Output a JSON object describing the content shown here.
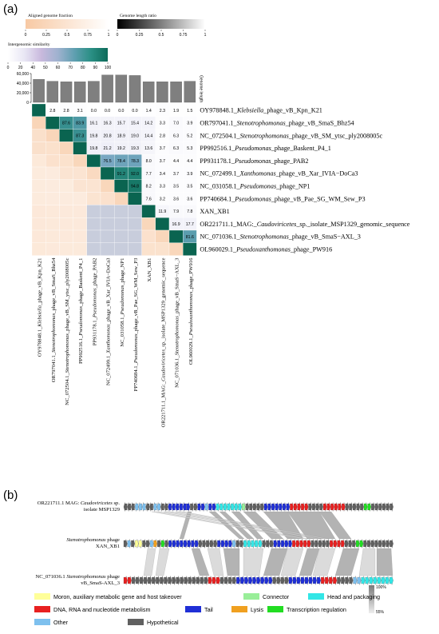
{
  "panel_a": {
    "label": "(a)",
    "colorbars": {
      "fraction": {
        "title": "Aligned genome fraction",
        "ticks": [
          "0",
          "0.25",
          "0.5",
          "0.75",
          "1"
        ],
        "stops": [
          "#f7c9a4",
          "#ffffff"
        ]
      },
      "length_ratio": {
        "title": "Genome length ratio",
        "ticks": [
          "0",
          "0.25",
          "0.5",
          "0.75",
          "1"
        ],
        "stops": [
          "#000000",
          "#ffffff"
        ]
      },
      "similarity": {
        "title": "Intergenomic similarity",
        "ticks": [
          "0",
          "20",
          "40",
          "50",
          "60",
          "70",
          "80",
          "90",
          "100"
        ],
        "stops": [
          "#ffffff",
          "#e8e6f4",
          "#c9b9dd",
          "#9fb2cf",
          "#5f9fb0",
          "#2a8f84",
          "#0d6b5a"
        ]
      }
    },
    "bar_axis": {
      "ticks": [
        "0",
        "20,000",
        "40,000",
        "60,000"
      ],
      "label": "Genome length"
    }
  },
  "chart_data": [
    {
      "type": "heatmap",
      "title": "",
      "row_labels": [
        "OY978848.1_Klebsiella_phage_vB_Kpn_K21",
        "OR797041.1_Stenotrophomonas_phage_vB_SmaS_Bhz54",
        "NC_072504.1_Stenotrophomonas_phage_vB_SM_ytsc_ply2008005c",
        "PP992516.1_Pseudomonas_phage_Baskent_P4_1",
        "PP931178.1_Pseudomonas_phage_PAB2",
        "NC_072499.1_Xanthomonas_phage_vB_Xar_IVIA-DoCa3",
        "NC_031058.1_Pseudomonas_phage_NP1",
        "PP740684.1_Pseudomonas_phage_vB_Pae_SG_WM_Sew_P3",
        "XAN_XB1",
        "OR221711.1_MAG:_Caudoviricetes_sp._isolate_MSP1329_genomic_sequence",
        "NC_071036.1_Stenotrophomonas_phage_vB_SmaS-AXL_3",
        "OL960029.1_Pseudoxanthomonas_phage_PW916"
      ],
      "row_parts": [
        [
          "OY978848.1_",
          "Klebsiella",
          "_phage_vB_Kpn_K21"
        ],
        [
          "OR797041.1_",
          "Stenotrophomonas",
          "_phage_vB_SmaS_Bhz54"
        ],
        [
          "NC_072504.1_",
          "Stenotrophomonas",
          "_phage_vB_SM_ytsc_ply2008005c"
        ],
        [
          "PP992516.1_",
          "Pseudomonas",
          "_phage_Baskent_P4_1"
        ],
        [
          "PP931178.1_",
          "Pseudomonas",
          "_phage_PAB2"
        ],
        [
          "NC_072499.1_",
          "Xanthomonas",
          "_phage_vB_Xar_IVIA−DoCa3"
        ],
        [
          "NC_031058.1_",
          "Pseudomonas",
          "_phage_NP1"
        ],
        [
          "PP740684.1_",
          "Pseudomonas",
          "_phage_vB_Pae_SG_WM_Sew_P3"
        ],
        [
          "XAN_XB1",
          "",
          ""
        ],
        [
          "OR221711.1_MAG:_",
          "Caudoviricetes",
          "_sp._isolate_MSP1329_genomic_sequence"
        ],
        [
          "NC_071036.1_",
          "Stenotrophomonas",
          "_phage_vB_SmaS−AXL_3"
        ],
        [
          "OL960029.1_",
          "Pseudoxanthomonas",
          "_phage_PW916"
        ]
      ],
      "col_parts": [
        [
          "OY978848.1_",
          "Klebsiella",
          "_phage_vB_Kpn_K21"
        ],
        [
          "OR797041.1_",
          "Stenotrophomonas",
          "_phage_vB_SmaS_Bhz54"
        ],
        [
          "NC_072504.1_",
          "Stenotrophomonas",
          "_phage_vB_SM_ytsc_ply2008005c"
        ],
        [
          "PP992516.1_",
          "Pseudomonas",
          "_phage_Baskent_P4_1"
        ],
        [
          "PP931178.1_",
          "Pseudomonas",
          "_phage_PAB2"
        ],
        [
          "NC_072499.1_",
          "Xanthomonas",
          "_phage_vB_Xar_IVIA−DoCa3"
        ],
        [
          "NC_031058.1_",
          "Pseudomonas",
          "_phage_NP1"
        ],
        [
          "PP740684.1_",
          "Pseudomonas",
          "_phage_vB_Pae_SG_WM_Sew_P3"
        ],
        [
          "XAN_XB1",
          "",
          ""
        ],
        [
          "OR221711.1_MAG:_",
          "Caudoviricetes",
          "_sp._isolate_MSP1329_genomic_sequence"
        ],
        [
          "NC_071036.1_",
          "Stenotrophomonas",
          "_phage_vB_SmaS−AXL_3"
        ],
        [
          "OL960029.1_",
          "Pseudoxanthomonas",
          "_phage_PW916"
        ]
      ],
      "upper_triangle": [
        [
          100,
          2.8,
          2.8,
          3.1,
          0.0,
          0.0,
          0.0,
          0.0,
          1.4,
          2.3,
          1.9,
          1.5
        ],
        [
          null,
          100,
          87.6,
          83.9,
          16.1,
          16.3,
          15.7,
          15.4,
          14.2,
          3.3,
          7.0,
          3.9
        ],
        [
          null,
          null,
          100,
          87.3,
          19.8,
          20.8,
          18.9,
          19.0,
          14.4,
          2.8,
          6.3,
          5.2
        ],
        [
          null,
          null,
          null,
          100,
          19.8,
          21.2,
          19.2,
          19.3,
          13.6,
          3.7,
          6.3,
          5.3
        ],
        [
          null,
          null,
          null,
          null,
          100,
          76.5,
          78.4,
          78.3,
          8.0,
          3.7,
          4.4,
          4.4
        ],
        [
          null,
          null,
          null,
          null,
          null,
          100,
          91.2,
          92.0,
          7.7,
          3.4,
          3.7,
          3.9
        ],
        [
          null,
          null,
          null,
          null,
          null,
          null,
          100,
          94.8,
          8.2,
          3.3,
          3.5,
          3.5
        ],
        [
          null,
          null,
          null,
          null,
          null,
          null,
          null,
          100,
          7.6,
          3.2,
          3.6,
          3.6
        ],
        [
          null,
          null,
          null,
          null,
          null,
          null,
          null,
          null,
          100,
          11.9,
          7.9,
          7.8
        ],
        [
          null,
          null,
          null,
          null,
          null,
          null,
          null,
          null,
          null,
          100,
          16.9,
          17.7
        ],
        [
          null,
          null,
          null,
          null,
          null,
          null,
          null,
          null,
          null,
          null,
          100,
          81.6
        ],
        [
          null,
          null,
          null,
          null,
          null,
          null,
          null,
          null,
          null,
          null,
          null,
          100
        ]
      ],
      "genome_length_bars": [
        48000,
        44000,
        43000,
        43000,
        44000,
        57000,
        57000,
        56000,
        43000,
        43000,
        43000,
        44000
      ],
      "bar_ylim": [
        0,
        60000
      ]
    },
    {
      "type": "gene-map",
      "title": "",
      "label": "(b)",
      "tracks": [
        {
          "lines": [
            "OR221711.1 MAG: ",
            "Caudoviricetes",
            " sp.",
            "isolate MSP1329"
          ]
        },
        {
          "lines": [
            "",
            "Stenotrophomonas",
            " phage",
            "XAN_XB1"
          ]
        },
        {
          "lines": [
            "NC_071036.1 ",
            "Stenotrophomonas",
            " phage",
            "vB_SmaS-AXL_3"
          ]
        }
      ],
      "identity_scale": {
        "ticks": [
          "100%",
          "55%"
        ]
      },
      "legend": [
        {
          "name": "Moron, auxiliary metabolic gene and host takeover",
          "color": "#ffff99"
        },
        {
          "name": "Connector",
          "color": "#99ee99"
        },
        {
          "name": "Head and packaging",
          "color": "#33e6e6"
        },
        {
          "name": "DNA, RNA and nucleotide metabolism",
          "color": "#e82020"
        },
        {
          "name": "Tail",
          "color": "#1f2fd6"
        },
        {
          "name": "Lysis",
          "color": "#f0a020"
        },
        {
          "name": "Transcription regulation",
          "color": "#22dd22"
        },
        {
          "name": "Other",
          "color": "#7ec0ee"
        },
        {
          "name": "Hypothetical",
          "color": "#606060"
        }
      ]
    }
  ]
}
